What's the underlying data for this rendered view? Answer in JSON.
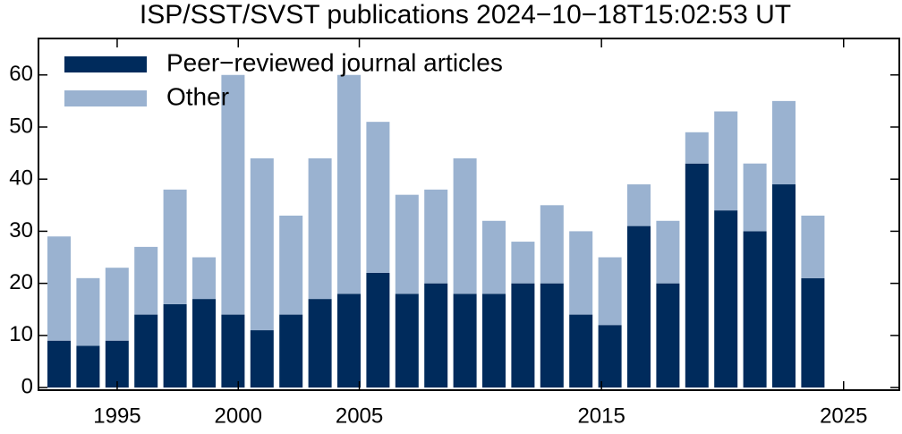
{
  "chart_data": {
    "type": "stacked_bar",
    "title": "ISP/SST/SVST publications 2024−10−18T15:02:53 UT",
    "categories": [
      null,
      null,
      null,
      null,
      null,
      null,
      null,
      null,
      null,
      null,
      null,
      null,
      null,
      null,
      null,
      null,
      null,
      null,
      null,
      null,
      null,
      null,
      null,
      null,
      null,
      null,
      null
    ],
    "series": [
      {
        "name": "Peer−reviewed journal articles",
        "color": "#002b5c",
        "values": [
          9,
          8,
          9,
          14,
          16,
          17,
          14,
          11,
          14,
          17,
          18,
          22,
          18,
          20,
          18,
          18,
          20,
          20,
          14,
          12,
          31,
          20,
          43,
          34,
          30,
          39,
          21
        ]
      },
      {
        "name": "Other",
        "color": "#9ab2d0",
        "values": [
          20,
          13,
          14,
          13,
          22,
          8,
          46,
          33,
          19,
          27,
          42,
          29,
          19,
          18,
          26,
          14,
          8,
          15,
          16,
          13,
          8,
          12,
          6,
          19,
          13,
          16,
          12
        ]
      }
    ],
    "ylim": [
      -0.5,
      67
    ],
    "yticks": [
      0,
      10,
      20,
      30,
      40,
      50,
      60
    ],
    "xlim": [
      1991.75,
      2027.3
    ],
    "xticks": [
      1995,
      2000,
      2005,
      2015,
      2025
    ],
    "legend": "upper left"
  }
}
